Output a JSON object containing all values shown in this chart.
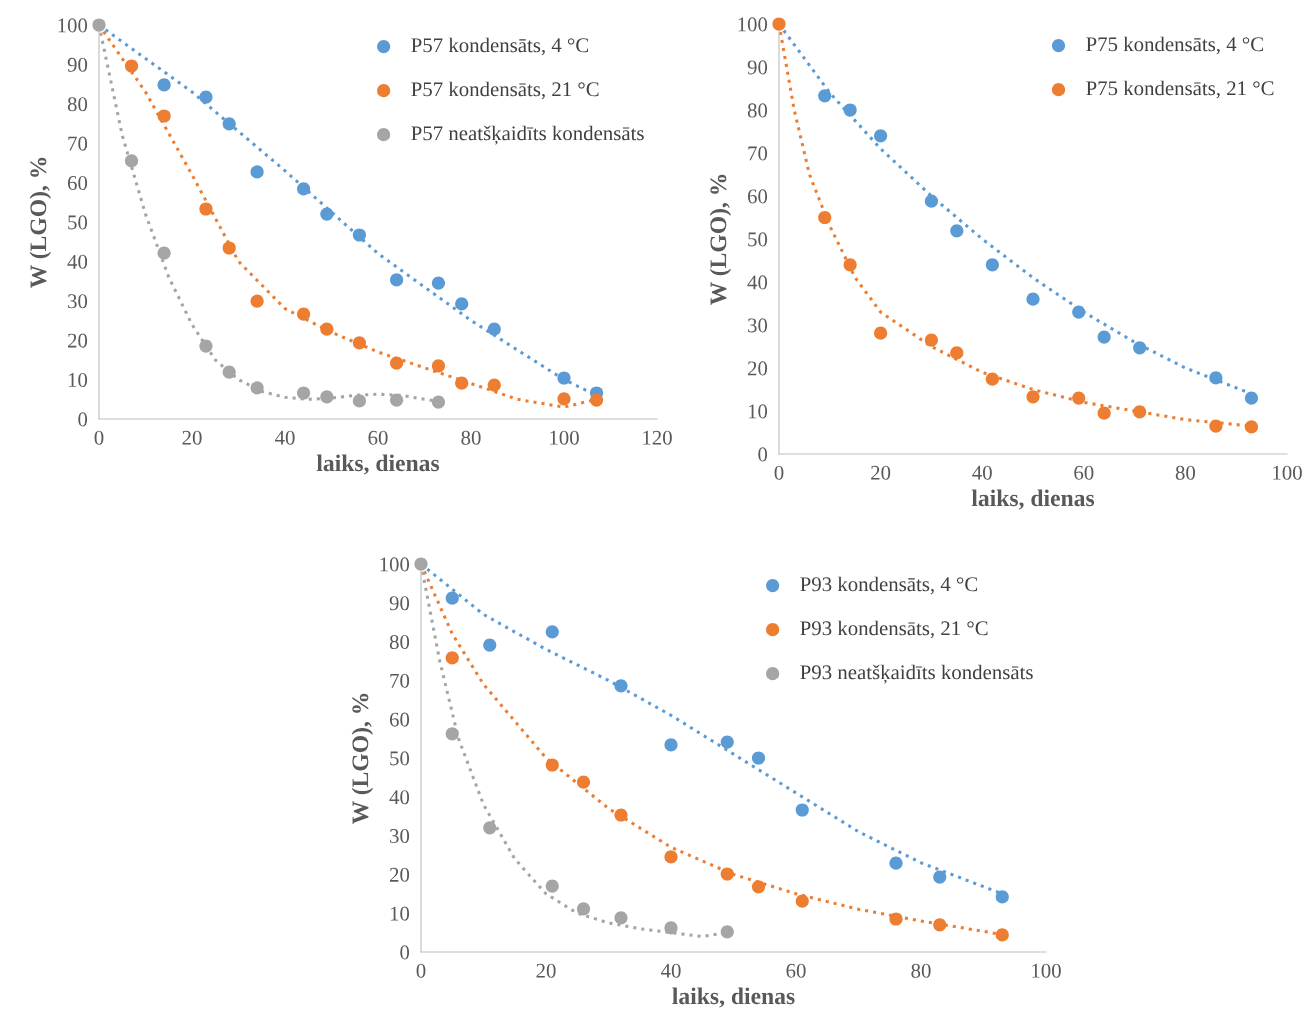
{
  "chart_data": [
    {
      "type": "scatter",
      "xlabel": "laiks, dienas",
      "ylabel": "W (LGO), %",
      "xlim": [
        0,
        120
      ],
      "xticks": [
        0,
        20,
        40,
        60,
        80,
        100,
        120
      ],
      "ylim": [
        0,
        100
      ],
      "yticks": [
        0,
        10,
        20,
        30,
        40,
        50,
        60,
        70,
        80,
        90,
        100
      ],
      "grid": false,
      "legend": "top right",
      "series": [
        {
          "name": "P57 kondensāts, 4 °C",
          "color": "#5b9bd5",
          "marker": "circle",
          "x": [
            14,
            23,
            28,
            34,
            44,
            49,
            56,
            64,
            73,
            78,
            85,
            100,
            107
          ],
          "values": [
            84.8,
            81.7,
            74.9,
            62.7,
            58.4,
            52,
            46.7,
            35.3,
            34.5,
            29.2,
            22.8,
            10.4,
            6.6
          ]
        },
        {
          "name": "P57 kondensāts, 21 °C",
          "color": "#ed7d31",
          "marker": "circle",
          "x": [
            7,
            14,
            23,
            28,
            34,
            44,
            49,
            56,
            64,
            73,
            78,
            85,
            100,
            107
          ],
          "values": [
            89.6,
            76.9,
            53.3,
            43.4,
            29.9,
            26.6,
            22.8,
            19.3,
            14.2,
            13.5,
            9.1,
            8.6,
            5.1,
            4.8
          ]
        },
        {
          "name": "P57 neatšķaidīts kondensāts",
          "color": "#a5a5a5",
          "marker": "circle",
          "x": [
            0,
            7,
            14,
            23,
            28,
            34,
            44,
            49,
            56,
            64,
            73
          ],
          "values": [
            100,
            65.5,
            42.1,
            18.5,
            11.9,
            7.9,
            6.6,
            5.6,
            4.6,
            4.8,
            4.3
          ]
        },
        {
          "type": "line",
          "line_style": "dotted",
          "color": "#5b9bd5",
          "x": [
            0,
            20,
            40,
            60,
            80,
            100,
            107
          ],
          "values": [
            100,
            83,
            63,
            42,
            25,
            10,
            6
          ]
        },
        {
          "type": "line",
          "line_style": "dotted",
          "color": "#ed7d31",
          "x": [
            0,
            10,
            20,
            30,
            40,
            50,
            60,
            70,
            80,
            90,
            100,
            107
          ],
          "values": [
            100,
            83,
            62,
            40,
            28,
            22,
            17,
            13,
            9,
            5,
            3,
            5
          ]
        },
        {
          "type": "line",
          "line_style": "dotted",
          "color": "#a5a5a5",
          "x": [
            0,
            5,
            10,
            15,
            20,
            25,
            30,
            35,
            40,
            45,
            50,
            55,
            60,
            65,
            70,
            73
          ],
          "values": [
            100,
            72,
            52,
            36,
            24,
            15,
            10,
            7,
            5.5,
            5,
            5.3,
            6,
            6.3,
            6,
            5,
            4.5
          ]
        }
      ]
    },
    {
      "type": "scatter",
      "xlabel": "laiks, dienas",
      "ylabel": "W (LGO), %",
      "xlim": [
        0,
        100
      ],
      "xticks": [
        0,
        20,
        40,
        60,
        80,
        100
      ],
      "ylim": [
        0,
        100
      ],
      "yticks": [
        0,
        10,
        20,
        30,
        40,
        50,
        60,
        70,
        80,
        90,
        100
      ],
      "grid": false,
      "legend": "top right",
      "series": [
        {
          "name": "P75 kondensāts, 4 °C",
          "color": "#5b9bd5",
          "marker": "circle",
          "x": [
            9,
            14,
            20,
            30,
            35,
            42,
            50,
            59,
            64,
            71,
            86,
            93
          ],
          "values": [
            83.3,
            80,
            74,
            58.8,
            51.9,
            44,
            36,
            33,
            27.2,
            24.7,
            17.7,
            13
          ]
        },
        {
          "name": "P75 kondensāts, 21 °C",
          "color": "#ed7d31",
          "marker": "circle",
          "x": [
            0,
            9,
            14,
            20,
            30,
            35,
            42,
            50,
            59,
            64,
            71,
            86,
            93
          ],
          "values": [
            100,
            55,
            44,
            28.1,
            26.5,
            23.5,
            17.4,
            13.3,
            13,
            9.5,
            9.8,
            6.5,
            6.3
          ]
        },
        {
          "type": "line",
          "line_style": "dotted",
          "color": "#5b9bd5",
          "x": [
            0,
            10,
            20,
            30,
            40,
            50,
            60,
            70,
            80,
            93
          ],
          "values": [
            100,
            84,
            71,
            60,
            50,
            41,
            33,
            26,
            20,
            14
          ]
        },
        {
          "type": "line",
          "line_style": "dotted",
          "color": "#ed7d31",
          "x": [
            0,
            3,
            6,
            10,
            15,
            20,
            30,
            40,
            50,
            60,
            70,
            80,
            93
          ],
          "values": [
            100,
            80,
            65,
            53,
            41,
            33,
            25,
            19,
            15,
            12,
            10,
            8,
            6.5
          ]
        }
      ]
    },
    {
      "type": "scatter",
      "xlabel": "laiks, dienas",
      "ylabel": "W (LGO), %",
      "xlim": [
        0,
        100
      ],
      "xticks": [
        0,
        20,
        40,
        60,
        80,
        100
      ],
      "ylim": [
        0,
        100
      ],
      "yticks": [
        0,
        10,
        20,
        30,
        40,
        50,
        60,
        70,
        80,
        90,
        100
      ],
      "grid": false,
      "legend": "top right",
      "series": [
        {
          "name": "P93 kondensāts, 4 °C",
          "color": "#5b9bd5",
          "marker": "circle",
          "x": [
            5,
            11,
            21,
            32,
            40,
            49,
            54,
            61,
            76,
            83,
            93
          ],
          "values": [
            91.2,
            79.1,
            82.5,
            68.6,
            53.4,
            54.1,
            50,
            36.6,
            22.9,
            19.3,
            14.2
          ]
        },
        {
          "name": "P93 kondensāts, 21 °C",
          "color": "#ed7d31",
          "marker": "circle",
          "x": [
            5,
            21,
            26,
            32,
            40,
            49,
            54,
            61,
            76,
            83,
            93
          ],
          "values": [
            75.8,
            48.2,
            43.8,
            35.3,
            24.5,
            20.1,
            16.8,
            13.1,
            8.5,
            7,
            4.4
          ]
        },
        {
          "name": "P93 neatšķaidīts kondensāts",
          "color": "#a5a5a5",
          "marker": "circle",
          "x": [
            0,
            5,
            11,
            21,
            26,
            32,
            40,
            49
          ],
          "values": [
            100,
            56.2,
            32,
            17,
            11.1,
            8.8,
            6.2,
            5.2
          ]
        },
        {
          "type": "line",
          "line_style": "dotted",
          "color": "#5b9bd5",
          "x": [
            0,
            10,
            20,
            30,
            40,
            50,
            60,
            70,
            80,
            93
          ],
          "values": [
            100,
            87,
            78,
            70,
            61,
            51,
            41,
            31,
            23,
            15
          ]
        },
        {
          "type": "line",
          "line_style": "dotted",
          "color": "#ed7d31",
          "x": [
            0,
            5,
            10,
            20,
            30,
            40,
            50,
            60,
            70,
            80,
            93
          ],
          "values": [
            100,
            82,
            69,
            50,
            37,
            27,
            20,
            15,
            11,
            8,
            4.5
          ]
        },
        {
          "type": "line",
          "line_style": "dotted",
          "color": "#a5a5a5",
          "x": [
            0,
            3,
            6,
            10,
            15,
            20,
            25,
            30,
            35,
            40,
            45,
            49
          ],
          "values": [
            100,
            75,
            55,
            38,
            24,
            15,
            10,
            7.5,
            6,
            5,
            4,
            5
          ]
        }
      ]
    }
  ]
}
